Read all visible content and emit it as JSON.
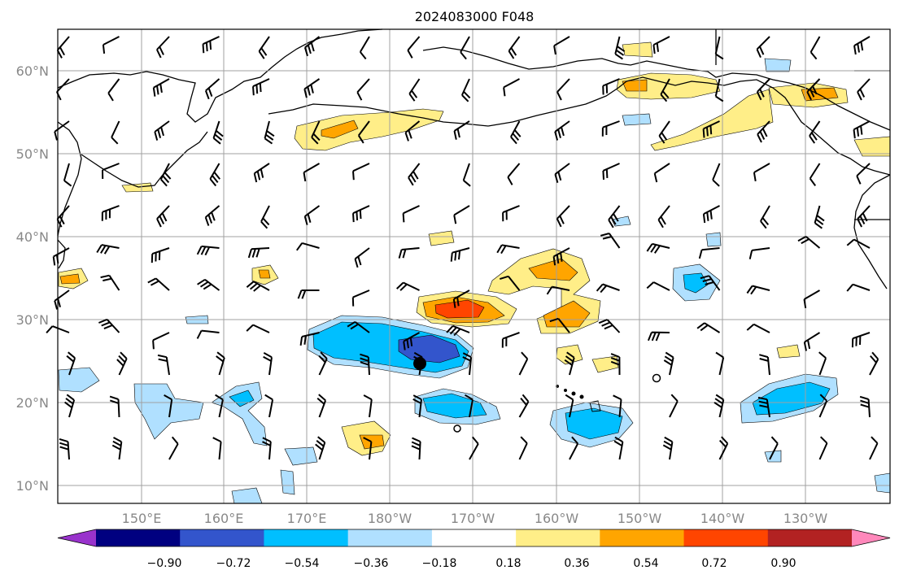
{
  "title": "2024083000 F048",
  "map": {
    "lat_labels": [
      "60°N",
      "50°N",
      "40°N",
      "30°N",
      "20°N",
      "10°N"
    ],
    "lon_labels": [
      "150°E",
      "160°E",
      "170°E",
      "180°W",
      "170°W",
      "160°W",
      "150°W",
      "140°W",
      "130°W"
    ],
    "land_color": "#ffffff",
    "coast_color": "#000000",
    "grid_color": "#a0a0a0",
    "storm_marker": "storm-center"
  },
  "colorbar": {
    "ticks": [
      "−0.90",
      "−0.72",
      "−0.54",
      "−0.36",
      "−0.18",
      "0.18",
      "0.36",
      "0.54",
      "0.72",
      "0.90"
    ],
    "colors": [
      "#9933cc",
      "#000080",
      "#3355cc",
      "#00bfff",
      "#b0e0ff",
      "#ffffff",
      "#ffee88",
      "#ffa500",
      "#ff4500",
      "#b22222",
      "#ff88bb"
    ]
  }
}
